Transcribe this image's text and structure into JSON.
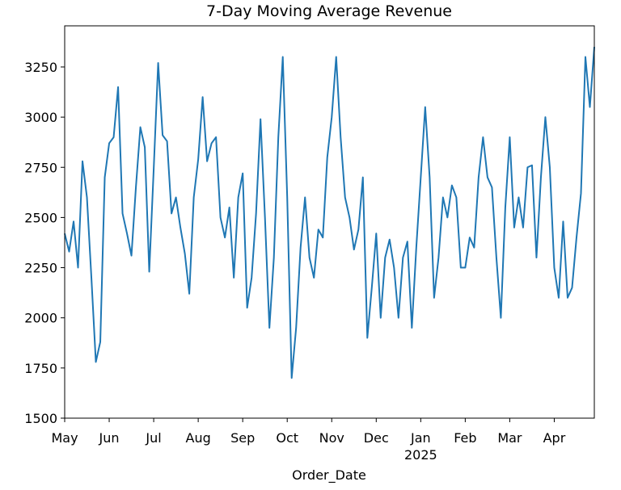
{
  "chart_data": {
    "type": "line",
    "title": "7-Day Moving Average Revenue",
    "xlabel": "Order_Date",
    "color": "#1f77b4",
    "categories": [
      "May",
      null,
      null,
      null,
      null,
      null,
      null,
      null,
      null,
      null,
      "Jun",
      null,
      null,
      null,
      null,
      null,
      null,
      null,
      null,
      null,
      "Jul",
      null,
      null,
      null,
      null,
      null,
      null,
      null,
      null,
      null,
      "Aug",
      null,
      null,
      null,
      null,
      null,
      null,
      null,
      null,
      null,
      "Sep",
      null,
      null,
      null,
      null,
      null,
      null,
      null,
      null,
      null,
      "Oct",
      null,
      null,
      null,
      null,
      null,
      null,
      null,
      null,
      null,
      "Nov",
      null,
      null,
      null,
      null,
      null,
      null,
      null,
      null,
      null,
      "Dec",
      null,
      null,
      null,
      null,
      null,
      null,
      null,
      null,
      null,
      "Jan\n2025",
      null,
      null,
      null,
      null,
      null,
      null,
      null,
      null,
      null,
      "Feb",
      null,
      null,
      null,
      null,
      null,
      null,
      null,
      null,
      null,
      "Mar",
      null,
      null,
      null,
      null,
      null,
      null,
      null,
      null,
      null,
      "Apr",
      null,
      null,
      null,
      null,
      null,
      null,
      null,
      null,
      null
    ],
    "values": [
      2420,
      2330,
      2480,
      2250,
      2780,
      2600,
      2200,
      1780,
      1880,
      2700,
      2870,
      2900,
      3150,
      2520,
      2420,
      2310,
      2650,
      2950,
      2850,
      2230,
      2740,
      3270,
      2910,
      2880,
      2520,
      2600,
      2450,
      2320,
      2120,
      2600,
      2790,
      3100,
      2780,
      2870,
      2900,
      2500,
      2400,
      2550,
      2200,
      2600,
      2720,
      2050,
      2200,
      2520,
      2990,
      2500,
      1950,
      2300,
      2900,
      3300,
      2600,
      1700,
      1950,
      2350,
      2600,
      2300,
      2200,
      2440,
      2400,
      2800,
      3000,
      3300,
      2900,
      2600,
      2500,
      2340,
      2440,
      2700,
      1900,
      2150,
      2420,
      2000,
      2300,
      2390,
      2250,
      2000,
      2300,
      2380,
      1950,
      2350,
      2700,
      3050,
      2700,
      2100,
      2300,
      2600,
      2500,
      2660,
      2600,
      2250,
      2250,
      2400,
      2350,
      2700,
      2900,
      2700,
      2650,
      2300,
      2000,
      2550,
      2900,
      2450,
      2600,
      2450,
      2750,
      2760,
      2300,
      2700,
      3000,
      2750,
      2250,
      2100,
      2480,
      2100,
      2150,
      2400,
      2620,
      3300,
      3050,
      3350
    ],
    "ylim": [
      1500,
      3455
    ],
    "yticks": [
      1500,
      1750,
      2000,
      2250,
      2500,
      2750,
      3000,
      3250
    ]
  }
}
